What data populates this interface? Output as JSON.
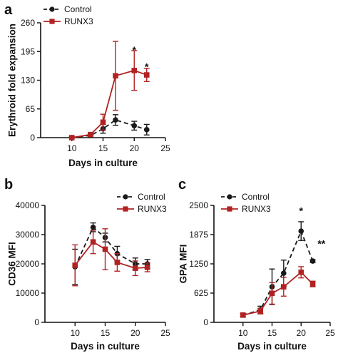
{
  "colors": {
    "control": "#1a1a1a",
    "runx3": "#b22222",
    "axis": "#111111"
  },
  "chart_data": [
    {
      "panel": "a",
      "type": "line",
      "xlabel": "Days in culture",
      "ylabel": "Erythroid fold expansion",
      "xlim": [
        5,
        25
      ],
      "ylim": [
        0,
        260
      ],
      "xticks": [
        10,
        15,
        20,
        25
      ],
      "yticks": [
        0,
        65,
        130,
        195,
        260
      ],
      "grid": false,
      "legend": {
        "position": "top-left",
        "entries": [
          "Control",
          "RUNX3"
        ]
      },
      "series": [
        {
          "name": "Control",
          "style": "dashed",
          "marker": "circle",
          "color": "#1a1a1a",
          "x": [
            10,
            13,
            15,
            17,
            20,
            22
          ],
          "y": [
            0,
            5,
            20,
            40,
            27,
            18
          ],
          "error": [
            2,
            3,
            10,
            12,
            10,
            12
          ]
        },
        {
          "name": "RUNX3",
          "style": "solid",
          "marker": "square",
          "color": "#b22222",
          "x": [
            10,
            13,
            15,
            17,
            20,
            22
          ],
          "y": [
            0,
            7,
            35,
            140,
            152,
            142
          ],
          "error": [
            2,
            4,
            18,
            78,
            45,
            15
          ]
        }
      ],
      "annotations": [
        {
          "x": 20,
          "y": 200,
          "text": "*"
        },
        {
          "x": 22,
          "y": 162,
          "text": "*"
        }
      ]
    },
    {
      "panel": "b",
      "type": "line",
      "xlabel": "Days in culture",
      "ylabel": "CD36 MFI",
      "xlim": [
        5,
        25
      ],
      "ylim": [
        0,
        40000
      ],
      "xticks": [
        10,
        15,
        20,
        25
      ],
      "yticks": [
        0,
        10000,
        20000,
        30000,
        40000
      ],
      "grid": false,
      "legend": {
        "position": "top-right",
        "entries": [
          "Control",
          "RUNX3"
        ]
      },
      "series": [
        {
          "name": "Control",
          "style": "dashed",
          "marker": "circle",
          "color": "#1a1a1a",
          "x": [
            10,
            13,
            15,
            17,
            20,
            22
          ],
          "y": [
            19000,
            32500,
            29000,
            23500,
            20000,
            20000
          ],
          "error": [
            6000,
            1500,
            1500,
            2500,
            2000,
            1500
          ]
        },
        {
          "name": "RUNX3",
          "style": "solid",
          "marker": "square",
          "color": "#b22222",
          "x": [
            10,
            13,
            15,
            17,
            20,
            22
          ],
          "y": [
            19500,
            27500,
            25000,
            20500,
            18500,
            18800
          ],
          "error": [
            7000,
            4000,
            7000,
            3000,
            2500,
            1500
          ]
        }
      ],
      "annotations": []
    },
    {
      "panel": "c",
      "type": "line",
      "xlabel": "Days in culture",
      "ylabel": "GPA MFI",
      "xlim": [
        5,
        25
      ],
      "ylim": [
        0,
        2500
      ],
      "xticks": [
        10,
        15,
        20,
        25
      ],
      "yticks": [
        0,
        625,
        1250,
        1875,
        2500
      ],
      "grid": false,
      "legend": {
        "position": "top-right",
        "entries": [
          "Control",
          "RUNX3"
        ]
      },
      "series": [
        {
          "name": "Control",
          "style": "dashed",
          "marker": "circle",
          "color": "#1a1a1a",
          "x": [
            10,
            13,
            15,
            17,
            20,
            22
          ],
          "y": [
            155,
            265,
            760,
            1050,
            1950,
            1310
          ],
          "error": [
            30,
            80,
            380,
            280,
            200,
            30
          ]
        },
        {
          "name": "RUNX3",
          "style": "solid",
          "marker": "square",
          "color": "#b22222",
          "x": [
            10,
            13,
            15,
            17,
            20,
            22
          ],
          "y": [
            155,
            240,
            620,
            760,
            1070,
            820
          ],
          "error": [
            30,
            60,
            230,
            200,
            120,
            60
          ]
        }
      ],
      "annotations": [
        {
          "x": 20,
          "y": 2400,
          "text": "*"
        },
        {
          "x": 23.5,
          "y": 1700,
          "text": "**"
        }
      ]
    }
  ]
}
